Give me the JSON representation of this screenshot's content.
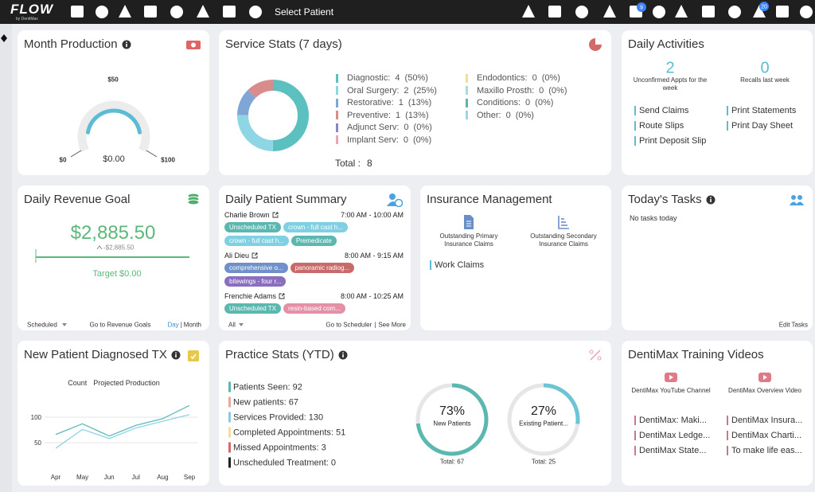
{
  "topbar": {
    "logo": "FLOW",
    "logo_sub": "by DentiMax",
    "select_patient": "Select Patient",
    "badges": [
      9,
      20
    ]
  },
  "month_production": {
    "title": "Month Production",
    "tick_mid": "$50",
    "tick_min": "$0",
    "tick_max": "$100",
    "value": "$0.00"
  },
  "service_stats": {
    "title": "Service Stats (7 days)",
    "items": [
      {
        "name": "Diagnostic:",
        "count": 4,
        "percent": "(50%)",
        "color": "#5cc0c0"
      },
      {
        "name": "Oral Surgery:",
        "count": 2,
        "percent": "(25%)",
        "color": "#8fd6e4"
      },
      {
        "name": "Restorative:",
        "count": 1,
        "percent": "(13%)",
        "color": "#7fa6d6"
      },
      {
        "name": "Preventive:",
        "count": 1,
        "percent": "(13%)",
        "color": "#d98c8c"
      },
      {
        "name": "Adjunct Serv:",
        "count": 0,
        "percent": "(0%)",
        "color": "#8c84c8"
      },
      {
        "name": "Implant Serv:",
        "count": 0,
        "percent": "(0%)",
        "color": "#e6a8b8"
      },
      {
        "name": "Endodontics:",
        "count": 0,
        "percent": "(0%)",
        "color": "#f1dc98"
      },
      {
        "name": "Maxillo Prosth:",
        "count": 0,
        "percent": "(0%)",
        "color": "#a8dcd8"
      },
      {
        "name": "Conditions:",
        "count": 0,
        "percent": "(0%)",
        "color": "#5fb3a8"
      },
      {
        "name": "Other:",
        "count": 0,
        "percent": "(0%)",
        "color": "#9fd4e6"
      }
    ],
    "total_label": "Total :",
    "total": 8
  },
  "daily_activities": {
    "title": "Daily Activities",
    "stats": [
      {
        "value": 2,
        "label": "Unconfirmed Appts for the week"
      },
      {
        "value": 0,
        "label": "Recalls last week"
      }
    ],
    "links": [
      "Send Claims",
      "Print Statements",
      "Route Slips",
      "Print Day Sheet",
      "Print Deposit Slip"
    ]
  },
  "daily_revenue": {
    "title": "Daily Revenue Goal",
    "amount": "$2,885.50",
    "delta": "-$2,885.50",
    "target": "Target $0.00",
    "scope": "Scheduled",
    "link": "Go to Revenue Goals",
    "day": "Day",
    "separator": "|",
    "month": "Month"
  },
  "daily_patient_summary": {
    "title": "Daily Patient Summary",
    "patients": [
      {
        "name": "Charlie Brown",
        "time": "7:00 AM - 10:00 AM",
        "tags": [
          {
            "text": "Unscheduled TX",
            "color": "#5bb8b0"
          },
          {
            "text": "crown - full cast h...",
            "color": "#7fd0e2"
          },
          {
            "text": "crown - full cast h...",
            "color": "#7fd0e2"
          },
          {
            "text": "Premedicate",
            "color": "#5bb8b0"
          }
        ]
      },
      {
        "name": "Ali Dieu",
        "time": "8:00 AM - 9:15 AM",
        "tags": [
          {
            "text": "comprehensive o...",
            "color": "#6f90c8"
          },
          {
            "text": "panoramic radiog...",
            "color": "#c96a6a"
          },
          {
            "text": "bitewings - four r...",
            "color": "#8a6fc0"
          }
        ]
      },
      {
        "name": "Frenchie Adams",
        "time": "8:00 AM - 10:25 AM",
        "tags": [
          {
            "text": "Unscheduled TX",
            "color": "#5bb8b0"
          },
          {
            "text": "resin-based com...",
            "color": "#e690a8"
          }
        ]
      }
    ],
    "filter": "All",
    "scheduler_link": "Go to Scheduler",
    "separator": "|",
    "more_link": "See More"
  },
  "insurance": {
    "title": "Insurance Management",
    "items": [
      "Outstanding Primary Insurance Claims",
      "Outstanding Secondary Insurance Claims"
    ],
    "link": "Work Claims"
  },
  "todays_tasks": {
    "title": "Today's Tasks",
    "empty": "No tasks today",
    "link": "Edit Tasks"
  },
  "new_patient_tx": {
    "title": "New Patient Diagnosed TX",
    "chart": {
      "type": "line",
      "categories": [
        "Apr",
        "May",
        "Jun",
        "Jul",
        "Aug",
        "Sep"
      ],
      "series": [
        {
          "name": "Count",
          "color": "#5fb8b8",
          "values": [
            66,
            87,
            63,
            84,
            97,
            123
          ]
        },
        {
          "name": "Projected Production",
          "color": "#8fd3e4",
          "values": [
            39,
            76,
            58,
            79,
            92,
            105
          ]
        }
      ],
      "ylim": [
        0,
        130
      ],
      "yticks": [
        50,
        100
      ],
      "grid": true
    }
  },
  "practice_stats": {
    "title": "Practice Stats (YTD)",
    "items": [
      {
        "text": "Patients Seen: 92",
        "color": "#5bb8b0"
      },
      {
        "text": "New patients: 67",
        "color": "#e9a7a0"
      },
      {
        "text": "Services Provided: 130",
        "color": "#8fc7e0"
      },
      {
        "text": "Completed Appointments: 51",
        "color": "#f3df9a"
      },
      {
        "text": "Missed Appointments: 3",
        "color": "#d56a6a"
      },
      {
        "text": "Unscheduled Treatment: 0",
        "color": "#222222"
      }
    ],
    "rings": [
      {
        "percent": 73,
        "percent_label": "73%",
        "name": "New Patients",
        "total": "Total: 67",
        "color": "#5bb8b0"
      },
      {
        "percent": 27,
        "percent_label": "27%",
        "name": "Existing Patient...",
        "total": "Total: 25",
        "color": "#6cc4d4"
      }
    ]
  },
  "training": {
    "title": "DentiMax Training Videos",
    "videos": [
      "DentiMax YouTube Channel",
      "DentiMax Overview Video"
    ],
    "links": [
      "DentiMax: Maki...",
      "DentiMax Insura...",
      "DentiMax Ledge...",
      "DentiMax Charti...",
      "DentiMax State...",
      "To make life eas..."
    ]
  }
}
